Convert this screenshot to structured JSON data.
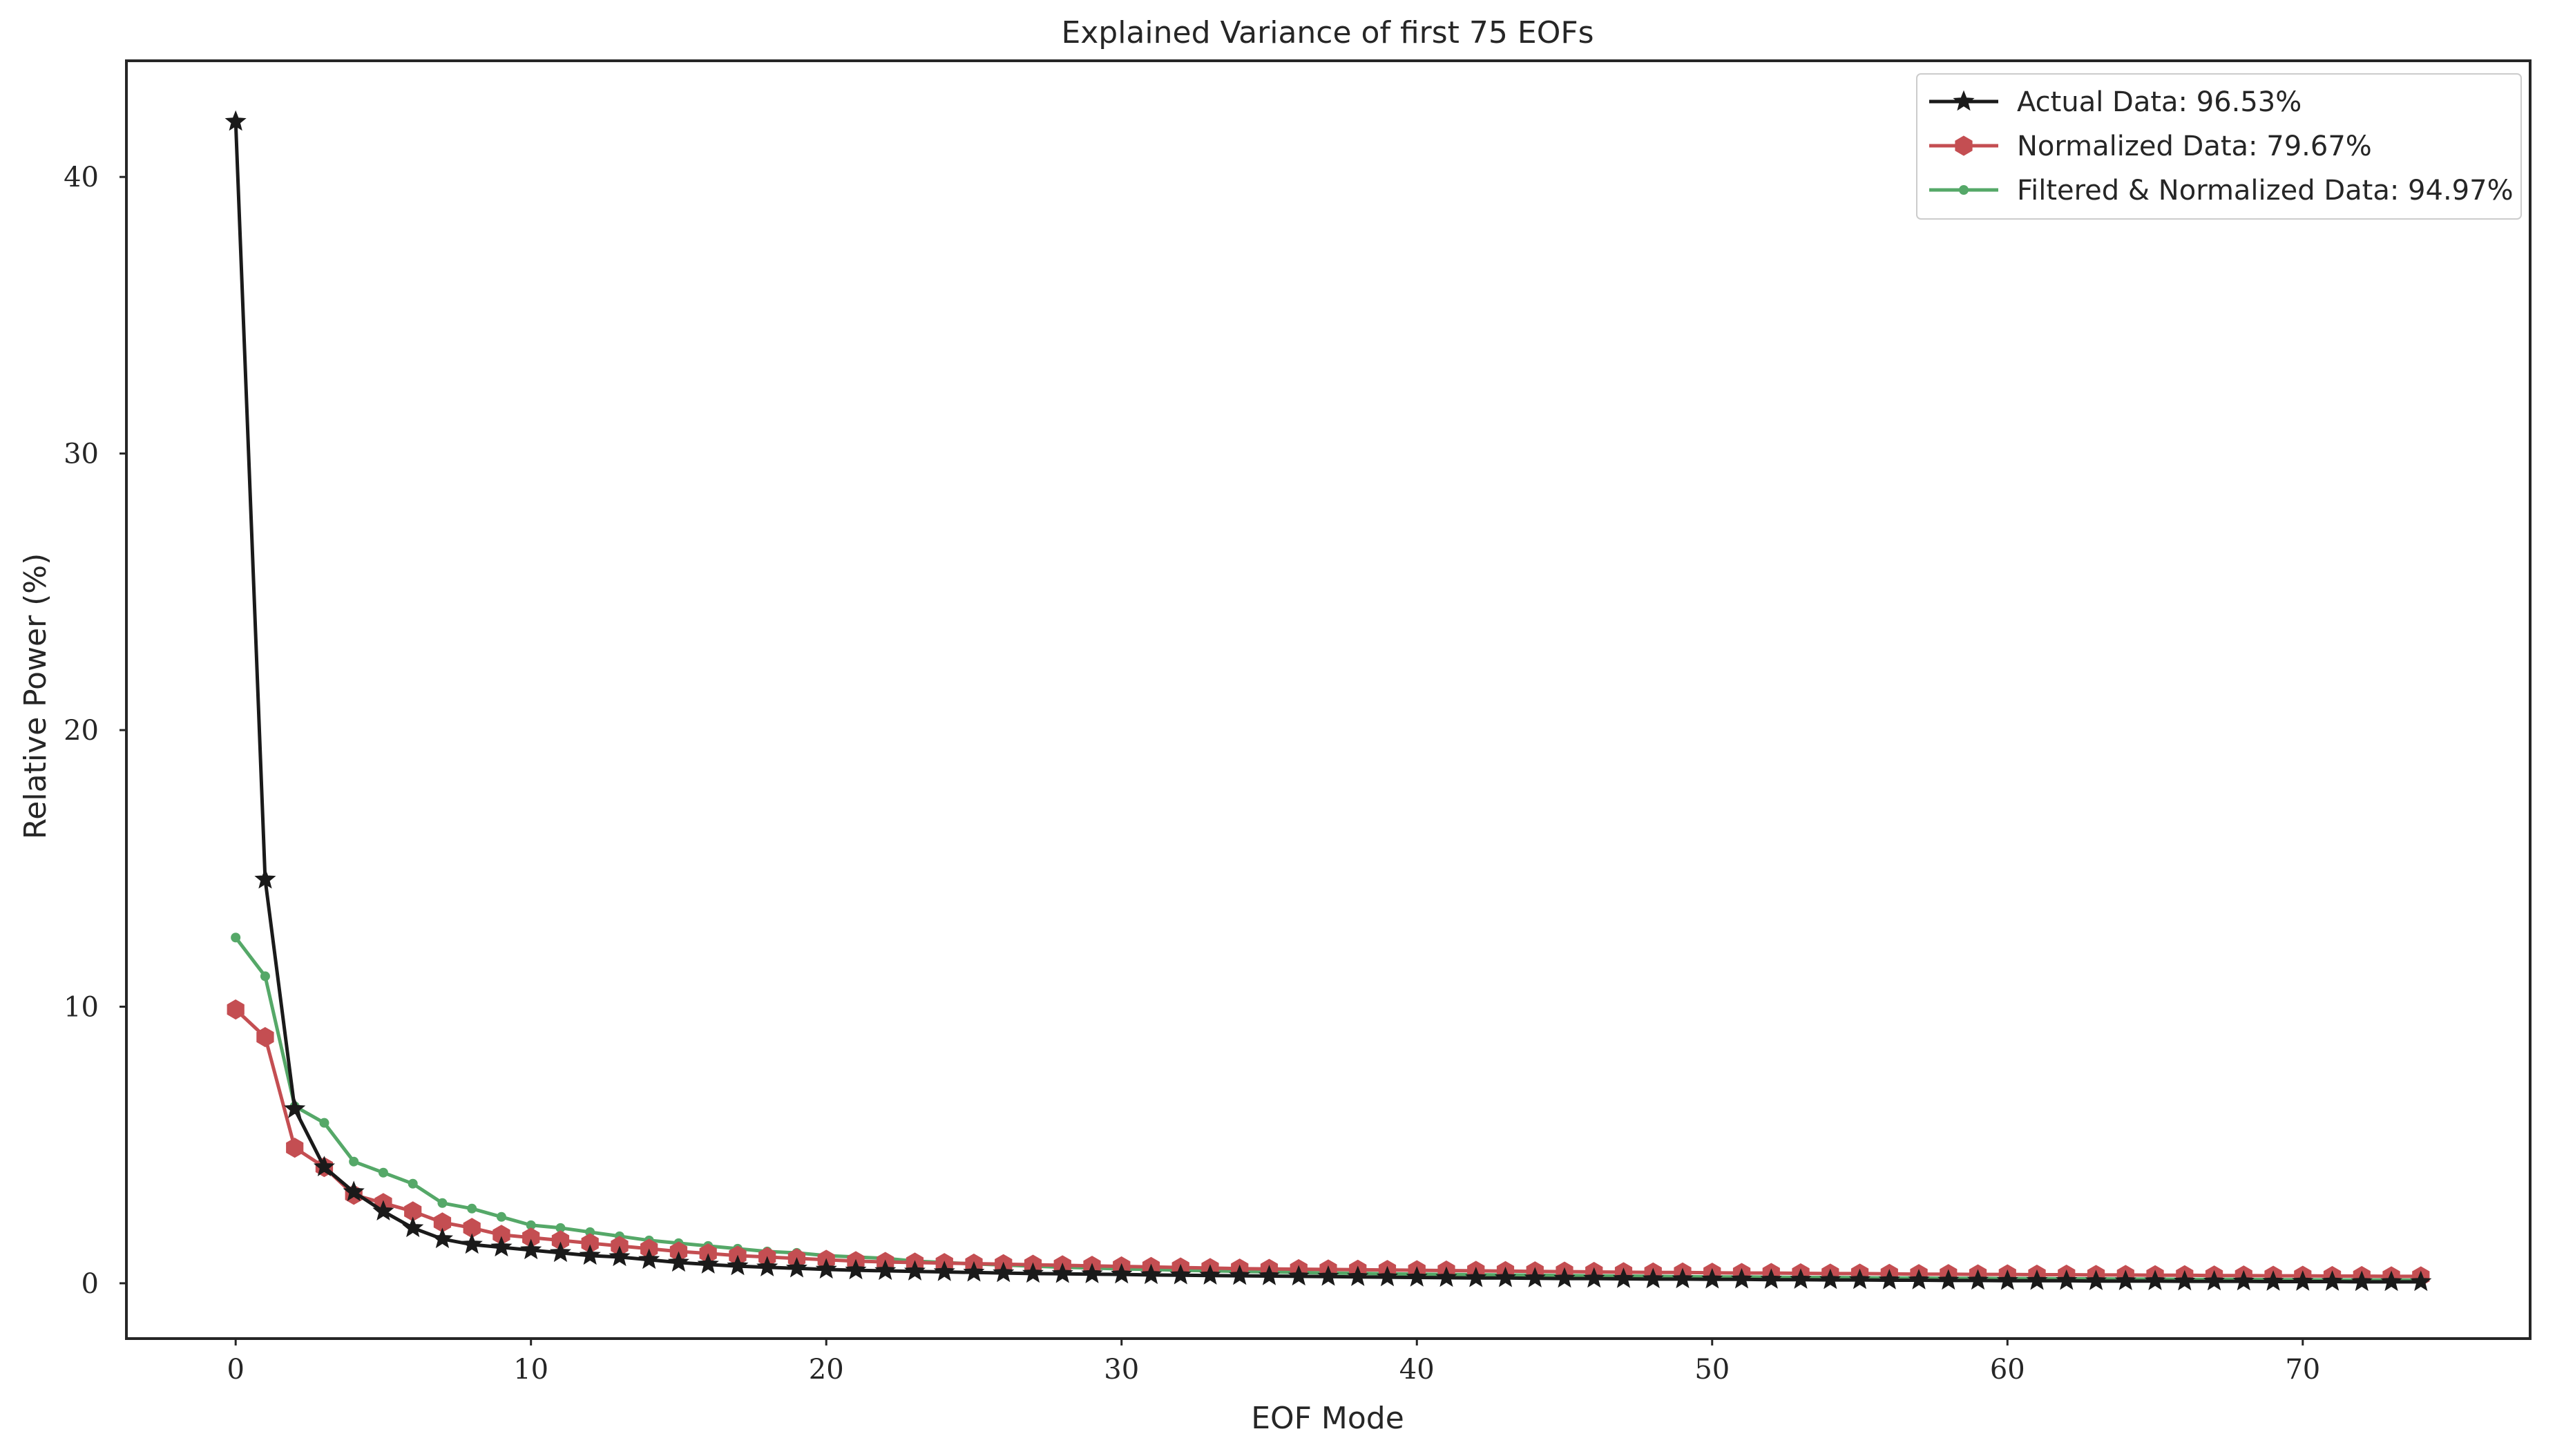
{
  "chart_data": {
    "type": "line",
    "title": "Explained Variance of first 75 EOFs",
    "xlabel": "EOF Mode",
    "ylabel": "Relative Power (%)",
    "xlim": [
      -3.7,
      77.7
    ],
    "ylim": [
      -2.0,
      44.2
    ],
    "xticks": [
      0,
      10,
      20,
      30,
      40,
      50,
      60,
      70
    ],
    "yticks": [
      0,
      10,
      20,
      30,
      40
    ],
    "grid": false,
    "legend_position": "top-right",
    "series": [
      {
        "name": "Actual Data: 96.53%",
        "color": "#1a1a1a",
        "marker": "star",
        "values": [
          42.0,
          14.6,
          6.3,
          4.2,
          3.3,
          2.6,
          2.0,
          1.6,
          1.4,
          1.3,
          1.2,
          1.1,
          1.0,
          0.95,
          0.85,
          0.75,
          0.68,
          0.62,
          0.58,
          0.54,
          0.5,
          0.47,
          0.45,
          0.43,
          0.41,
          0.39,
          0.37,
          0.35,
          0.34,
          0.33,
          0.32,
          0.3,
          0.29,
          0.28,
          0.27,
          0.26,
          0.25,
          0.24,
          0.23,
          0.22,
          0.21,
          0.2,
          0.19,
          0.19,
          0.18,
          0.17,
          0.17,
          0.16,
          0.15,
          0.15,
          0.14,
          0.14,
          0.13,
          0.13,
          0.12,
          0.12,
          0.11,
          0.11,
          0.1,
          0.1,
          0.09,
          0.09,
          0.09,
          0.08,
          0.08,
          0.08,
          0.07,
          0.07,
          0.07,
          0.06,
          0.06,
          0.06,
          0.05,
          0.05,
          0.05
        ]
      },
      {
        "name": "Normalized Data: 79.67%",
        "color": "#c44e52",
        "marker": "hexagon",
        "values": [
          9.9,
          8.9,
          4.9,
          4.2,
          3.2,
          2.9,
          2.6,
          2.2,
          2.0,
          1.75,
          1.65,
          1.55,
          1.45,
          1.35,
          1.25,
          1.15,
          1.08,
          1.0,
          0.95,
          0.9,
          0.85,
          0.8,
          0.77,
          0.75,
          0.73,
          0.71,
          0.69,
          0.67,
          0.65,
          0.63,
          0.61,
          0.59,
          0.57,
          0.55,
          0.53,
          0.52,
          0.51,
          0.5,
          0.49,
          0.48,
          0.47,
          0.46,
          0.45,
          0.44,
          0.43,
          0.42,
          0.41,
          0.4,
          0.39,
          0.39,
          0.38,
          0.37,
          0.37,
          0.36,
          0.35,
          0.35,
          0.34,
          0.33,
          0.33,
          0.32,
          0.32,
          0.31,
          0.31,
          0.3,
          0.3,
          0.29,
          0.29,
          0.28,
          0.28,
          0.27,
          0.27,
          0.26,
          0.26,
          0.25,
          0.25
        ]
      },
      {
        "name": "Filtered & Normalized Data: 94.97%",
        "color": "#55a868",
        "marker": "dot",
        "values": [
          12.5,
          11.1,
          6.4,
          5.8,
          4.4,
          4.0,
          3.6,
          2.9,
          2.7,
          2.4,
          2.1,
          2.0,
          1.85,
          1.7,
          1.55,
          1.45,
          1.35,
          1.25,
          1.15,
          1.1,
          1.0,
          0.95,
          0.9,
          0.8,
          0.75,
          0.7,
          0.66,
          0.62,
          0.58,
          0.55,
          0.52,
          0.5,
          0.47,
          0.45,
          0.43,
          0.41,
          0.39,
          0.37,
          0.36,
          0.34,
          0.33,
          0.32,
          0.31,
          0.3,
          0.29,
          0.28,
          0.27,
          0.26,
          0.25,
          0.24,
          0.23,
          0.23,
          0.22,
          0.21,
          0.21,
          0.2,
          0.19,
          0.19,
          0.18,
          0.18,
          0.17,
          0.17,
          0.16,
          0.16,
          0.15,
          0.15,
          0.14,
          0.14,
          0.14,
          0.13,
          0.13,
          0.12,
          0.12,
          0.12,
          0.11
        ]
      }
    ]
  }
}
